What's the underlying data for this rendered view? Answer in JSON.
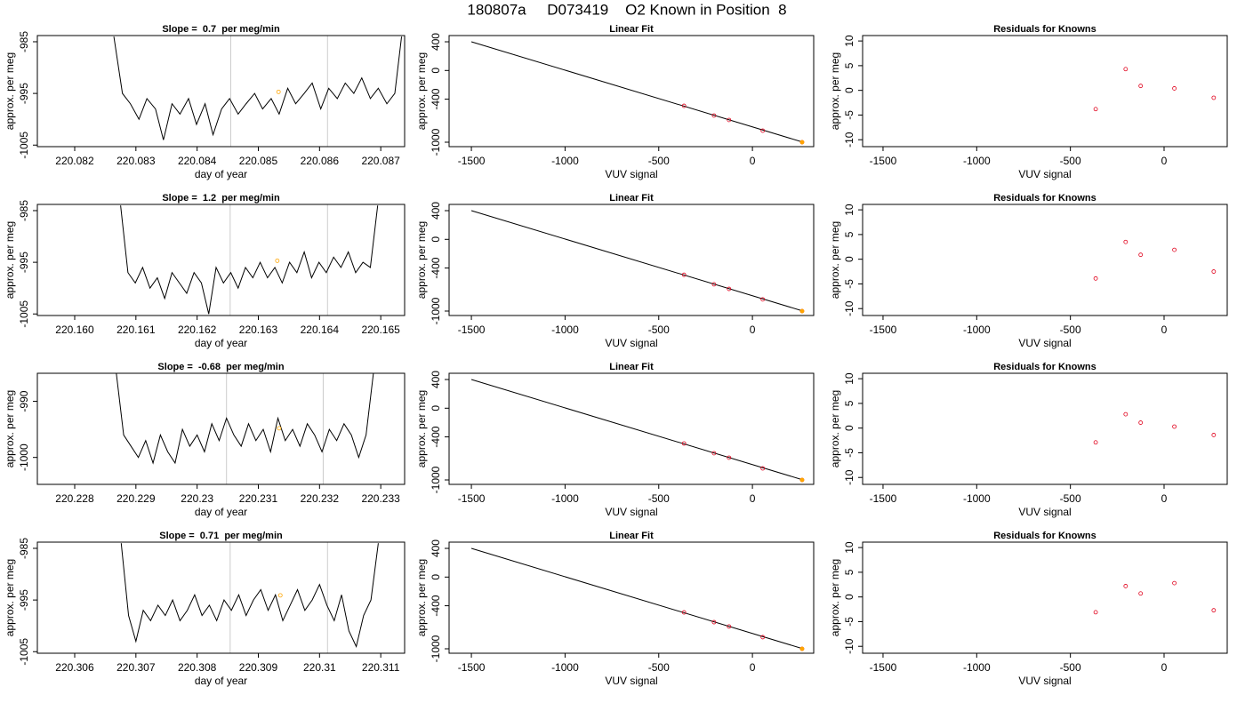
{
  "title": "180807a     D073419    O2 Known in Position  8",
  "chart_data": [
    {
      "type": "line",
      "title": "Slope =  0.7  per meg/min",
      "xlabel": "day of year",
      "ylabel": "approx. per meg",
      "xlim": [
        220.08139,
        220.08739
      ],
      "xticks": [
        220.082,
        220.083,
        220.084,
        220.085,
        220.086,
        220.087
      ],
      "ylim": [
        -1005.3,
        -983.8
      ],
      "yticks": [
        -985,
        -995,
        -1005
      ],
      "x": [
        220.08264,
        220.08278,
        220.08291,
        220.08305,
        220.08318,
        220.08332,
        220.08345,
        220.08359,
        220.08372,
        220.08386,
        220.08399,
        220.08413,
        220.08426,
        220.0844,
        220.08453,
        220.08467,
        220.0848,
        220.08494,
        220.08507,
        220.08521,
        220.08534,
        220.08548,
        220.08561,
        220.08575,
        220.08588,
        220.08602,
        220.08615,
        220.08629,
        220.08642,
        220.08656,
        220.08669,
        220.08683,
        220.08696,
        220.0871,
        220.08723,
        220.08734
      ],
      "series": [
        {
          "color": "#000000",
          "values": [
            -984,
            -995,
            -997,
            -1000,
            -996,
            -998,
            -1004,
            -997,
            -999,
            -996,
            -1001,
            -997,
            -1003,
            -998,
            -996,
            -999,
            -997,
            -995,
            -998,
            -996,
            -999,
            -994,
            -997,
            -995,
            -993,
            -998,
            -994,
            -996,
            -993,
            -995,
            -992,
            -996,
            -994,
            -997,
            -995,
            -984
          ]
        }
      ],
      "vlines": {
        "x": [
          220.08455,
          220.08613
        ],
        "color": "#cccccc"
      },
      "highlight": {
        "x": 220.08533,
        "y": -994.7,
        "color": "#ffa500"
      }
    },
    {
      "type": "scatter",
      "title": "Linear Fit",
      "xlabel": "VUV signal",
      "ylabel": "approx. per meg",
      "xlim": [
        -1619,
        327
      ],
      "xticks": [
        -1500,
        -1000,
        -500,
        0
      ],
      "ylim": [
        -1062,
        487
      ],
      "yticks": [
        400,
        0,
        -400,
        -1000
      ],
      "points": {
        "x": [
          -365,
          -205,
          -125,
          55,
          265
        ],
        "y": [
          -493,
          -628,
          -690,
          -839,
          -1000
        ],
        "color": "#e0001b"
      },
      "fit": {
        "x": [
          -1500,
          270
        ],
        "y": [
          400,
          -1000
        ],
        "color": "#000000"
      },
      "highlight": {
        "x": 265,
        "y": -1000,
        "color": "#ffa500"
      }
    },
    {
      "type": "scatter",
      "title": "Residuals for Knowns",
      "xlabel": "VUV signal",
      "ylabel": "approx. per meg",
      "xlim": [
        -1609,
        337
      ],
      "xticks": [
        -1500,
        -1000,
        -500,
        0
      ],
      "ylim": [
        -11.4,
        11.1
      ],
      "yticks": [
        10,
        5,
        0,
        -5,
        -10
      ],
      "points": {
        "x": [
          -365,
          -205,
          -125,
          55,
          265
        ],
        "y": [
          -3.8,
          4.3,
          0.9,
          0.4,
          -1.5
        ],
        "color": "#e0001b"
      }
    },
    {
      "type": "line",
      "title": "Slope =  1.2  per meg/min",
      "xlabel": "day of year",
      "ylabel": "approx. per meg",
      "xlim": [
        220.15939,
        220.16539
      ],
      "xticks": [
        {
          "value": 220.16,
          "label": "220.160"
        },
        220.161,
        220.162,
        220.163,
        220.164,
        220.165
      ],
      "ylim": [
        -1005.3,
        -983.8
      ],
      "yticks": [
        -985,
        -995,
        -1005
      ],
      "x": [
        220.16075,
        220.16087,
        220.16099,
        220.16111,
        220.16123,
        220.16135,
        220.16147,
        220.16159,
        220.16171,
        220.16183,
        220.16195,
        220.16207,
        220.16219,
        220.16231,
        220.16243,
        220.16255,
        220.16267,
        220.16279,
        220.16291,
        220.16303,
        220.16315,
        220.16327,
        220.16339,
        220.16351,
        220.16363,
        220.16375,
        220.16387,
        220.16399,
        220.16411,
        220.16423,
        220.16435,
        220.16447,
        220.16459,
        220.16471,
        220.16483,
        220.16495
      ],
      "series": [
        {
          "color": "#000000",
          "values": [
            -984,
            -997,
            -999,
            -996,
            -1000,
            -998,
            -1002,
            -997,
            -999,
            -1001,
            -997,
            -999,
            -1005,
            -996,
            -999,
            -997,
            -1000,
            -996,
            -998,
            -995,
            -998,
            -996,
            -999,
            -995,
            -997,
            -993,
            -998,
            -995,
            -997,
            -994,
            -996,
            -993,
            -997,
            -995,
            -996,
            -984
          ]
        }
      ],
      "vlines": {
        "x": [
          220.16254,
          220.16413
        ],
        "color": "#cccccc"
      },
      "highlight": {
        "x": 220.16331,
        "y": -994.7,
        "color": "#ffa500"
      }
    },
    {
      "type": "scatter",
      "title": "Linear Fit",
      "xlabel": "VUV signal",
      "ylabel": "approx. per meg",
      "xlim": [
        -1619,
        327
      ],
      "xticks": [
        -1500,
        -1000,
        -500,
        0
      ],
      "ylim": [
        -1062,
        487
      ],
      "yticks": [
        400,
        0,
        -400,
        -1000
      ],
      "points": {
        "x": [
          -365,
          -205,
          -125,
          55,
          265
        ],
        "y": [
          -494,
          -627,
          -691,
          -837,
          -1001
        ],
        "color": "#e0001b"
      },
      "fit": {
        "x": [
          -1500,
          270
        ],
        "y": [
          400,
          -1000
        ],
        "color": "#000000"
      },
      "highlight": {
        "x": 265,
        "y": -1001,
        "color": "#ffa500"
      }
    },
    {
      "type": "scatter",
      "title": "Residuals for Knowns",
      "xlabel": "VUV signal",
      "ylabel": "approx. per meg",
      "xlim": [
        -1609,
        337
      ],
      "xticks": [
        -1500,
        -1000,
        -500,
        0
      ],
      "ylim": [
        -11.4,
        11.1
      ],
      "yticks": [
        10,
        5,
        0,
        -5,
        -10
      ],
      "points": {
        "x": [
          -365,
          -205,
          -125,
          55,
          265
        ],
        "y": [
          -3.9,
          3.5,
          0.9,
          1.9,
          -2.5
        ],
        "color": "#e0001b"
      }
    },
    {
      "type": "line",
      "title": "Slope =  -0.68  per meg/min",
      "xlabel": "day of year",
      "ylabel": "approx. per meg",
      "xlim": [
        220.22739,
        220.23339
      ],
      "xticks": [
        220.228,
        220.229,
        220.23,
        220.231,
        220.232,
        220.233
      ],
      "ylim": [
        -1004.8,
        -985
      ],
      "yticks": [
        -990,
        -1000
      ],
      "x": [
        220.22868,
        220.2288,
        220.22892,
        220.22904,
        220.22916,
        220.22928,
        220.2294,
        220.22952,
        220.22964,
        220.22976,
        220.22988,
        220.23,
        220.23012,
        220.23024,
        220.23036,
        220.23048,
        220.2306,
        220.23072,
        220.23084,
        220.23096,
        220.23108,
        220.2312,
        220.23132,
        220.23144,
        220.23156,
        220.23168,
        220.2318,
        220.23192,
        220.23204,
        220.23216,
        220.23228,
        220.2324,
        220.23252,
        220.23264,
        220.23276,
        220.23288
      ],
      "series": [
        {
          "color": "#000000",
          "values": [
            -985,
            -996,
            -998,
            -1000,
            -997,
            -1001,
            -996,
            -999,
            -1001,
            -995,
            -998,
            -996,
            -999,
            -994,
            -997,
            -993,
            -996,
            -998,
            -994,
            -997,
            -995,
            -999,
            -993,
            -997,
            -995,
            -998,
            -994,
            -996,
            -999,
            -995,
            -997,
            -994,
            -996,
            -1000,
            -996,
            -985
          ]
        }
      ],
      "vlines": {
        "x": [
          220.23048,
          220.23206
        ],
        "color": "#cccccc"
      },
      "highlight": {
        "x": 220.23134,
        "y": -994.8,
        "color": "#ffa500"
      }
    },
    {
      "type": "scatter",
      "title": "Linear Fit",
      "xlabel": "VUV signal",
      "ylabel": "approx. per meg",
      "xlim": [
        -1619,
        327
      ],
      "xticks": [
        -1500,
        -1000,
        -500,
        0
      ],
      "ylim": [
        -1062,
        487
      ],
      "yticks": [
        400,
        0,
        -400,
        -1000
      ],
      "points": {
        "x": [
          -365,
          -205,
          -125,
          55,
          265
        ],
        "y": [
          -492,
          -628,
          -690,
          -839,
          -1000
        ],
        "color": "#e0001b"
      },
      "fit": {
        "x": [
          -1500,
          270
        ],
        "y": [
          400,
          -1000
        ],
        "color": "#000000"
      },
      "highlight": {
        "x": 265,
        "y": -1000,
        "color": "#ffa500"
      }
    },
    {
      "type": "scatter",
      "title": "Residuals for Knowns",
      "xlabel": "VUV signal",
      "ylabel": "approx. per meg",
      "xlim": [
        -1609,
        337
      ],
      "xticks": [
        -1500,
        -1000,
        -500,
        0
      ],
      "ylim": [
        -11.4,
        11.1
      ],
      "yticks": [
        10,
        5,
        0,
        -5,
        -10
      ],
      "points": {
        "x": [
          -365,
          -205,
          -125,
          55,
          265
        ],
        "y": [
          -2.9,
          2.8,
          1.1,
          0.3,
          -1.4
        ],
        "color": "#e0001b"
      }
    },
    {
      "type": "line",
      "title": "Slope =  0.71  per meg/min",
      "xlabel": "day of year",
      "ylabel": "approx. per meg",
      "xlim": [
        220.30539,
        220.31139
      ],
      "xticks": [
        220.306,
        220.307,
        220.308,
        220.309,
        220.31,
        220.311
      ],
      "ylim": [
        -1005.3,
        -983.8
      ],
      "yticks": [
        -985,
        -995,
        -1005
      ],
      "x": [
        220.30676,
        220.30688,
        220.307,
        220.30712,
        220.30724,
        220.30736,
        220.30748,
        220.3076,
        220.30772,
        220.30784,
        220.30796,
        220.30808,
        220.3082,
        220.30832,
        220.30844,
        220.30856,
        220.30868,
        220.3088,
        220.30892,
        220.30904,
        220.30916,
        220.30928,
        220.3094,
        220.30952,
        220.30964,
        220.30976,
        220.30988,
        220.31,
        220.31012,
        220.31024,
        220.31036,
        220.31048,
        220.3106,
        220.31072,
        220.31084,
        220.31096
      ],
      "series": [
        {
          "color": "#000000",
          "values": [
            -984,
            -998,
            -1003,
            -997,
            -999,
            -996,
            -998,
            -995,
            -999,
            -997,
            -994,
            -998,
            -996,
            -999,
            -995,
            -997,
            -994,
            -998,
            -995,
            -993,
            -997,
            -994,
            -999,
            -996,
            -993,
            -997,
            -995,
            -992,
            -996,
            -999,
            -994,
            -1001,
            -1004,
            -998,
            -995,
            -984
          ]
        }
      ],
      "vlines": {
        "x": [
          220.30854,
          220.31013
        ],
        "color": "#cccccc"
      },
      "highlight": {
        "x": 220.30936,
        "y": -994.1,
        "color": "#ffa500"
      }
    },
    {
      "type": "scatter",
      "title": "Linear Fit",
      "xlabel": "VUV signal",
      "ylabel": "approx. per meg",
      "xlim": [
        -1619,
        327
      ],
      "xticks": [
        -1500,
        -1000,
        -500,
        0
      ],
      "ylim": [
        -1062,
        487
      ],
      "yticks": [
        400,
        0,
        -400,
        -1000
      ],
      "points": {
        "x": [
          -365,
          -205,
          -125,
          55,
          265
        ],
        "y": [
          -493,
          -629,
          -689,
          -838,
          -1000
        ],
        "color": "#e0001b"
      },
      "fit": {
        "x": [
          -1500,
          270
        ],
        "y": [
          400,
          -1000
        ],
        "color": "#000000"
      },
      "highlight": {
        "x": 265,
        "y": -1000,
        "color": "#ffa500"
      }
    },
    {
      "type": "scatter",
      "title": "Residuals for Knowns",
      "xlabel": "VUV signal",
      "ylabel": "approx. per meg",
      "xlim": [
        -1609,
        337
      ],
      "xticks": [
        -1500,
        -1000,
        -500,
        0
      ],
      "ylim": [
        -11.4,
        11.1
      ],
      "yticks": [
        10,
        5,
        0,
        -5,
        -10
      ],
      "points": {
        "x": [
          -365,
          -205,
          -125,
          55,
          265
        ],
        "y": [
          -3.1,
          2.2,
          0.7,
          2.8,
          -2.7
        ],
        "color": "#e0001b"
      }
    }
  ]
}
